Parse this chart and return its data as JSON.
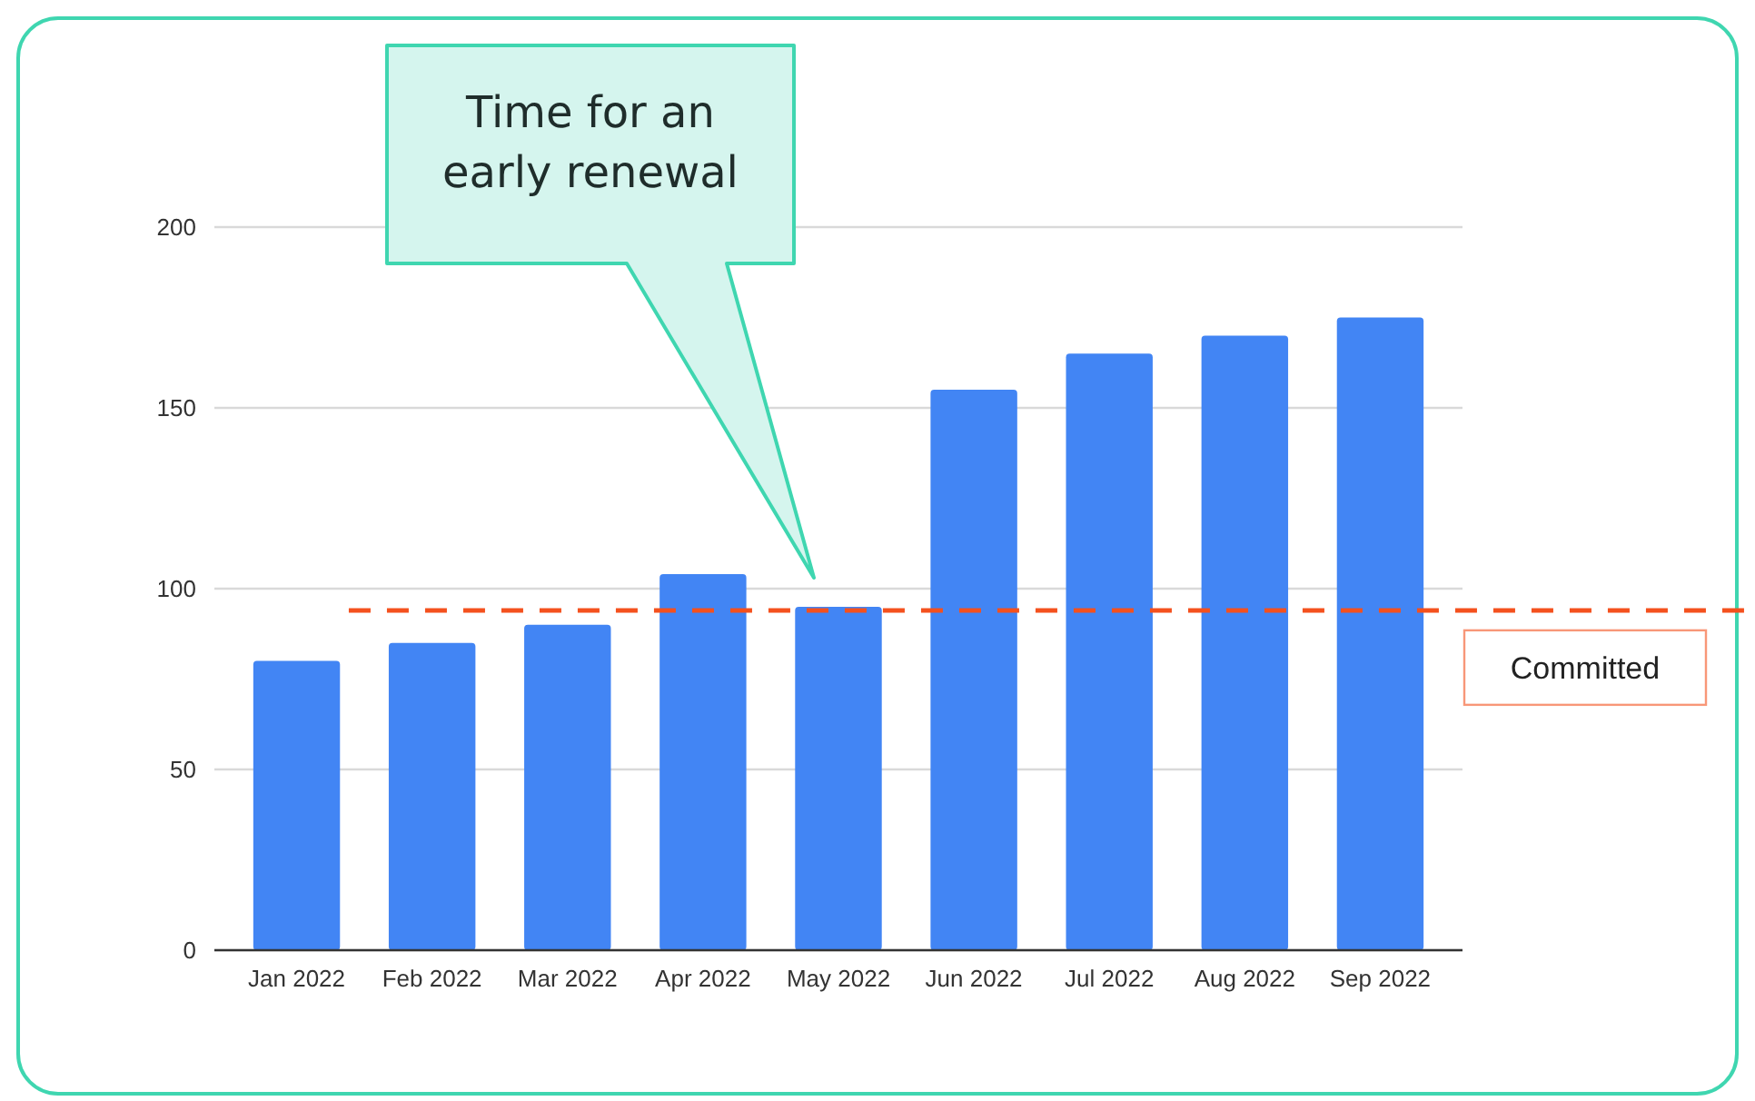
{
  "chart_data": {
    "type": "bar",
    "categories": [
      "Jan 2022",
      "Feb 2022",
      "Mar 2022",
      "Apr 2022",
      "May 2022",
      "Jun 2022",
      "Jul 2022",
      "Aug 2022",
      "Sep 2022"
    ],
    "values": [
      80,
      85,
      90,
      104,
      95,
      155,
      165,
      170,
      175
    ],
    "color": "#4285f4",
    "ylim": [
      0,
      200
    ],
    "yticks": [
      0,
      50,
      100,
      150,
      200
    ],
    "grid": "y",
    "ref_lines": [
      {
        "axis": "y",
        "value": 94,
        "label": "Committed",
        "color": "#f4511e",
        "line_style": "dashed"
      }
    ],
    "annotations": [
      "Time for an early renewal"
    ]
  }
}
